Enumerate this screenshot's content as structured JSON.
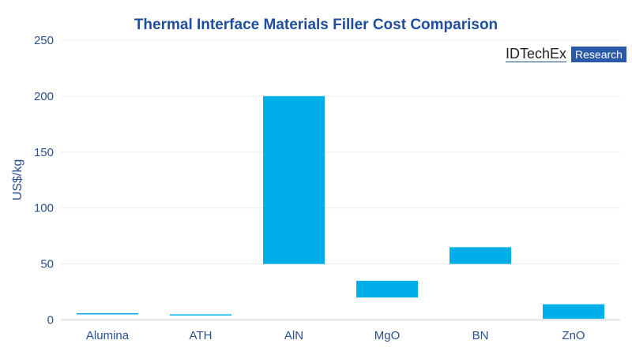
{
  "chart_data": {
    "type": "bar",
    "subtype": "floating-range",
    "title": "Thermal Interface Materials Filler Cost Comparison",
    "xlabel": "",
    "ylabel": "US$/kg",
    "ylim": [
      0,
      250
    ],
    "yticks": [
      0,
      50,
      100,
      150,
      200,
      250
    ],
    "grid": true,
    "categories": [
      "Alumina",
      "ATH",
      "AlN",
      "MgO",
      "BN",
      "ZnO"
    ],
    "ranges": [
      [
        5,
        6
      ],
      [
        4,
        5
      ],
      [
        50,
        200
      ],
      [
        20,
        35
      ],
      [
        50,
        65
      ],
      [
        1,
        14
      ]
    ],
    "color": "#00aee8"
  },
  "logo": {
    "name": "IDTechEx",
    "tag": "Research"
  }
}
